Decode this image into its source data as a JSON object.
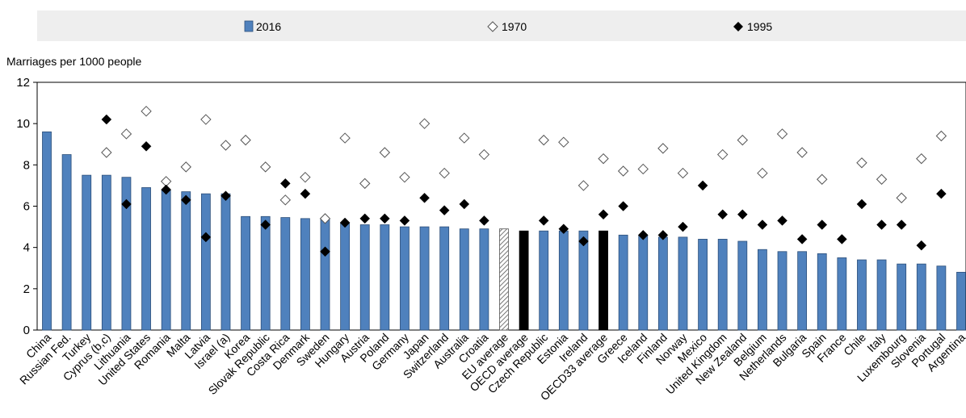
{
  "chart_data": {
    "type": "bar",
    "ylabel": "Marriages per 1000 people",
    "ylim": [
      0,
      12
    ],
    "yticks": [
      0,
      2,
      4,
      6,
      8,
      10,
      12
    ],
    "grid": false,
    "legend_position": "top",
    "legend": [
      "2016",
      "1970",
      "1995"
    ],
    "categories": [
      "China",
      "Russian Fed.",
      "Turkey",
      "Cyprus (b,c)",
      "Lithuania",
      "United States",
      "Romania",
      "Malta",
      "Latvia",
      "Israel (a)",
      "Korea",
      "Slovak Republic",
      "Costa Rica",
      "Denmark",
      "Sweden",
      "Hungary",
      "Austria",
      "Poland",
      "Germany",
      "Japan",
      "Switzerland",
      "Australia",
      "Croatia",
      "EU average",
      "OECD average",
      "Czech Republic",
      "Estonia",
      "Ireland",
      "OECD33 average",
      "Greece",
      "Iceland",
      "Finland",
      "Norway",
      "Mexico",
      "United Kingdom",
      "New Zealand",
      "Belgium",
      "Netherlands",
      "Bulgaria",
      "Spain",
      "France",
      "Chile",
      "Italy",
      "Luxembourg",
      "Slovenia",
      "Portugal",
      "Argentina"
    ],
    "bar_styles": [
      "normal",
      "normal",
      "normal",
      "normal",
      "normal",
      "normal",
      "normal",
      "normal",
      "normal",
      "normal",
      "normal",
      "normal",
      "normal",
      "normal",
      "normal",
      "normal",
      "normal",
      "normal",
      "normal",
      "normal",
      "normal",
      "normal",
      "normal",
      "hatched",
      "black",
      "normal",
      "normal",
      "normal",
      "black",
      "normal",
      "normal",
      "normal",
      "normal",
      "normal",
      "normal",
      "normal",
      "normal",
      "normal",
      "normal",
      "normal",
      "normal",
      "normal",
      "normal",
      "normal",
      "normal",
      "normal",
      "normal"
    ],
    "series": [
      {
        "name": "2016",
        "marker": "bar",
        "color": "#4f81bd",
        "values": [
          9.6,
          8.5,
          7.5,
          7.5,
          7.4,
          6.9,
          6.8,
          6.7,
          6.6,
          6.6,
          5.5,
          5.5,
          5.45,
          5.4,
          5.4,
          5.2,
          5.1,
          5.1,
          5.0,
          5.0,
          5.0,
          4.9,
          4.9,
          4.9,
          4.8,
          4.8,
          4.8,
          4.8,
          4.8,
          4.6,
          4.6,
          4.5,
          4.5,
          4.4,
          4.4,
          4.3,
          3.9,
          3.8,
          3.8,
          3.7,
          3.5,
          3.4,
          3.4,
          3.2,
          3.2,
          3.1,
          2.8
        ]
      },
      {
        "name": "1970",
        "marker": "diamond-open",
        "color": "#ffffff",
        "values": [
          null,
          null,
          null,
          8.6,
          9.5,
          10.6,
          7.2,
          7.9,
          10.2,
          8.95,
          9.2,
          7.9,
          6.3,
          7.4,
          5.4,
          9.3,
          7.1,
          8.6,
          7.4,
          10.0,
          7.6,
          9.3,
          8.5,
          null,
          null,
          9.2,
          9.1,
          7.0,
          8.3,
          7.7,
          7.8,
          8.8,
          7.6,
          null,
          8.5,
          9.2,
          7.6,
          9.5,
          8.6,
          7.3,
          null,
          8.1,
          7.3,
          6.4,
          8.3,
          9.4,
          null
        ]
      },
      {
        "name": "1995",
        "marker": "diamond-filled",
        "color": "#000000",
        "values": [
          null,
          null,
          null,
          10.2,
          6.1,
          8.9,
          6.8,
          6.3,
          4.5,
          6.5,
          null,
          5.1,
          7.1,
          6.6,
          3.8,
          5.2,
          5.4,
          5.4,
          5.3,
          6.4,
          5.8,
          6.1,
          5.3,
          null,
          null,
          5.3,
          4.9,
          4.3,
          5.6,
          6.0,
          4.6,
          4.6,
          5.0,
          7.0,
          5.6,
          5.6,
          5.1,
          5.3,
          4.4,
          5.1,
          4.4,
          6.1,
          5.1,
          5.1,
          4.1,
          6.6,
          null
        ]
      }
    ]
  }
}
